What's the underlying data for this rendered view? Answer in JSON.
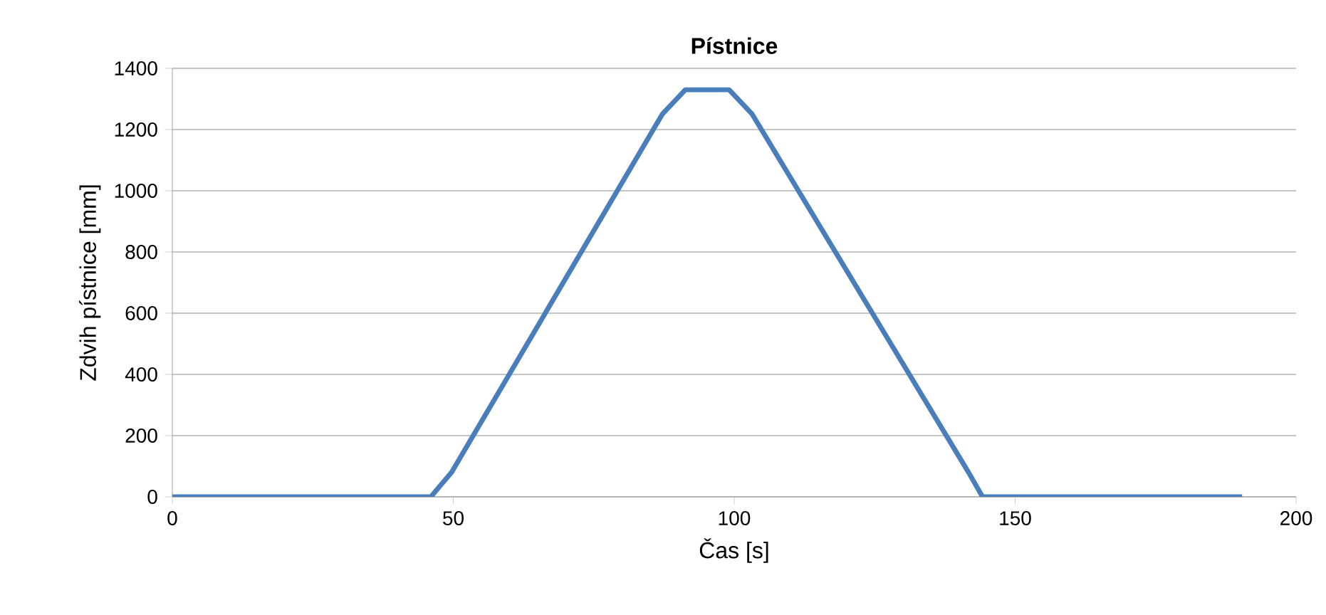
{
  "chart_data": {
    "type": "line",
    "title": "Pístnice",
    "xlabel": "Čas [s]",
    "ylabel": "Zdvih pístnice [mm]",
    "x": [
      0,
      46,
      49.7,
      87.2,
      91.3,
      99.1,
      103.2,
      141.7,
      144.2,
      190.4
    ],
    "series": [
      {
        "color": "#4a7ebb",
        "values": [
          0,
          0,
          80,
          1250,
          1330,
          1330,
          1250,
          80,
          0,
          0
        ]
      }
    ],
    "xlim": [
      0,
      200
    ],
    "xticks": [
      0,
      50,
      100,
      150,
      200
    ],
    "ylim": [
      0,
      1400
    ],
    "yticks": [
      0,
      200,
      400,
      600,
      800,
      1000,
      1200,
      1400
    ],
    "grid": "y",
    "line_style": "solid"
  }
}
